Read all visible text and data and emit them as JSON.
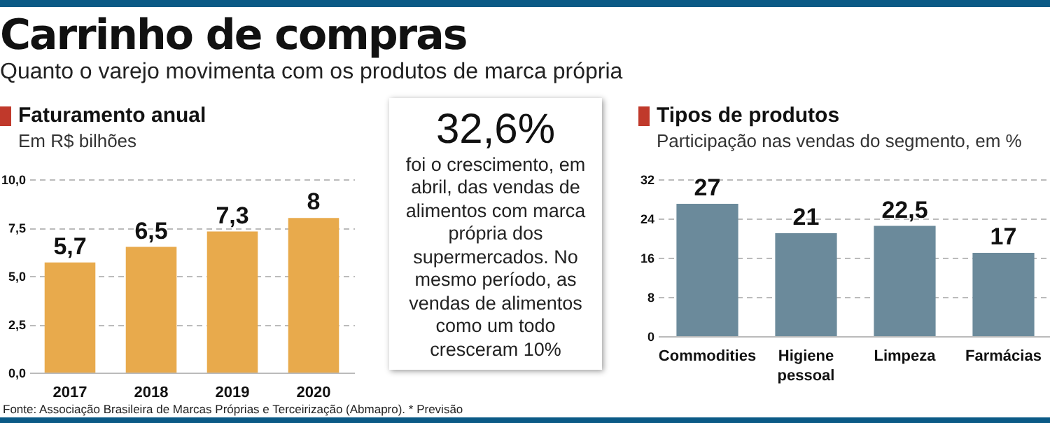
{
  "chart_data": [
    {
      "type": "other",
      "title": "Carrinho de compras",
      "subtitle": "Quanto o varejo movimenta com os produtos de marca própria"
    },
    {
      "type": "bar",
      "title": "Faturamento anual",
      "subtitle": "Em R$ bilhões",
      "categories": [
        "2017",
        "2018",
        "2019",
        "2020"
      ],
      "values": [
        5.7,
        6.5,
        7.3,
        8
      ],
      "value_labels": [
        "5,7",
        "6,5",
        "7,3",
        "8"
      ],
      "color": "#e8aa4c",
      "ylim": [
        0,
        10
      ],
      "yticks": [
        {
          "value": 0,
          "label": "0,0"
        },
        {
          "value": 2.5,
          "label": "2,5"
        },
        {
          "value": 5,
          "label": "5,0"
        },
        {
          "value": 7.5,
          "label": "7,5"
        },
        {
          "value": 10,
          "label": "10,0"
        }
      ],
      "grid": "y"
    },
    {
      "type": "other",
      "title": "32,6%",
      "annotations": [
        "foi o crescimento, em abril, das vendas de alimentos com marca própria dos supermercados. No mesmo período, as vendas de alimentos como um todo cresceram 10%"
      ]
    },
    {
      "type": "bar",
      "title": "Tipos de produtos",
      "subtitle": "Participação nas vendas do segmento, em %",
      "categories": [
        "Commodities",
        "Higiene pessoal",
        "Limpeza",
        "Farmácias"
      ],
      "values": [
        27,
        21,
        22.5,
        17
      ],
      "value_labels": [
        "27",
        "21",
        "22,5",
        "17"
      ],
      "color": "#6b8a9b",
      "ylim": [
        0,
        32
      ],
      "yticks": [
        0,
        8,
        16,
        24,
        32
      ],
      "grid": "y"
    },
    {
      "type": "other",
      "annotations": [
        "Fonte: Associação Brasileira de Marcas Próprias e Terceirização (Abmapro). * Previsão"
      ]
    }
  ]
}
